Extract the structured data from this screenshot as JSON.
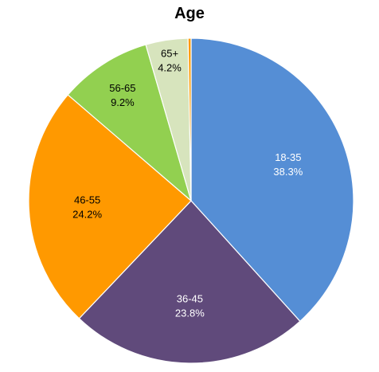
{
  "chart_data": {
    "type": "pie",
    "title": "Age",
    "start_angle_deg": 0,
    "direction": "clockwise",
    "slices": [
      {
        "label": "18-35",
        "value_label": "38.3%",
        "value": 38.3,
        "color": "#558ED5",
        "text_color": "#ffffff"
      },
      {
        "label": "36-45",
        "value_label": "23.8%",
        "value": 23.8,
        "color": "#604A7B",
        "text_color": "#ffffff"
      },
      {
        "label": "46-55",
        "value_label": "24.2%",
        "value": 24.2,
        "color": "#FF9900",
        "text_color": "#000000"
      },
      {
        "label": "56-65",
        "value_label": "9.2%",
        "value": 9.2,
        "color": "#92D050",
        "text_color": "#000000"
      },
      {
        "label": "65+",
        "value_label": "4.2%",
        "value": 4.2,
        "color": "#D7E4BD",
        "text_color": "#000000"
      },
      {
        "label": "",
        "value_label": "",
        "value": 0.3,
        "color": "#FF9900",
        "text_color": "#000000"
      }
    ],
    "legend": "none"
  }
}
